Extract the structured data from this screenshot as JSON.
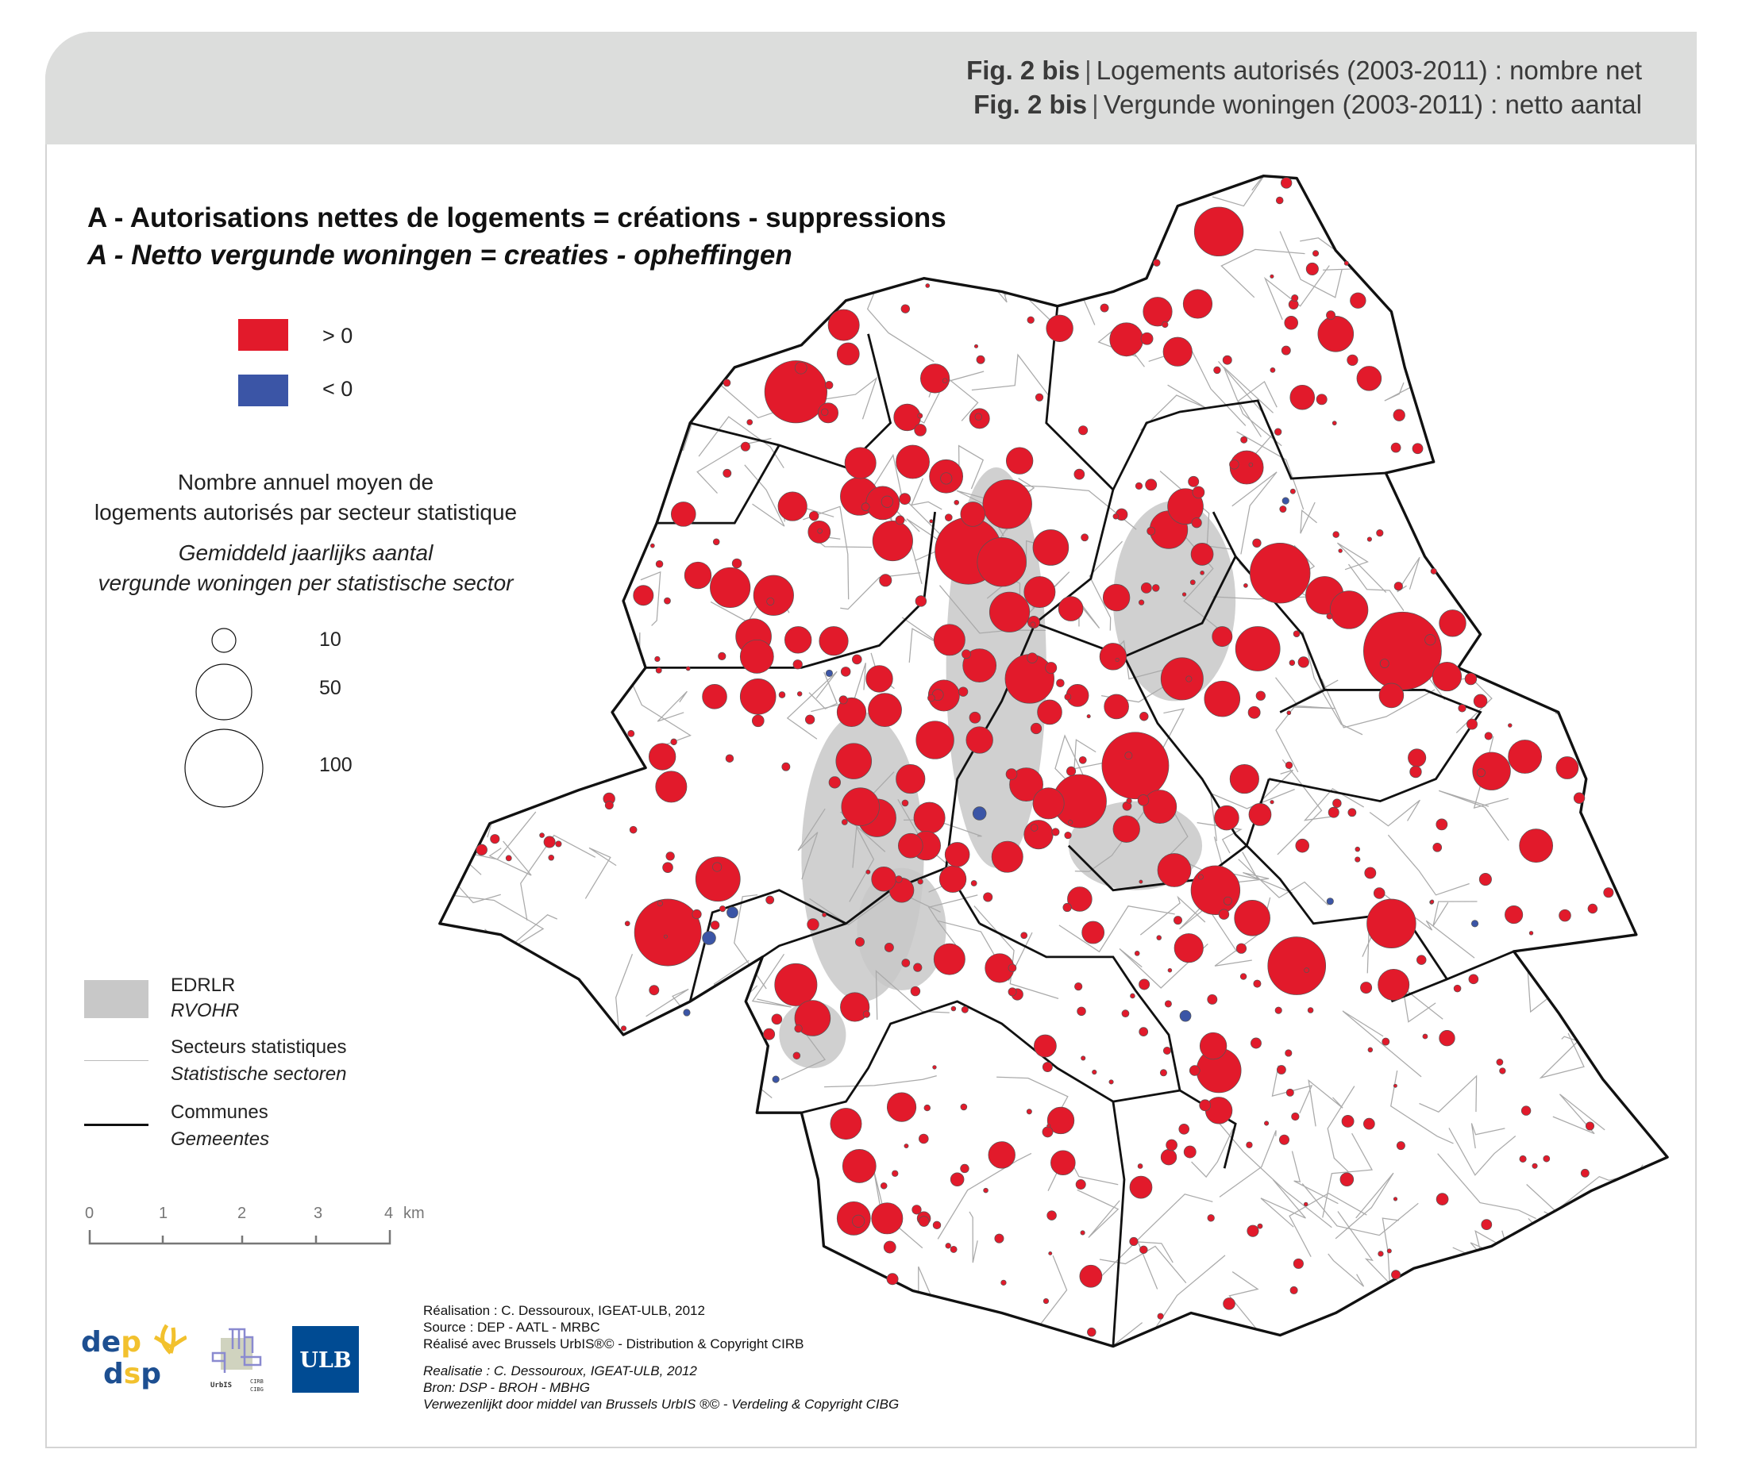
{
  "header": {
    "fig_label": "Fig. 2 bis",
    "title_fr": "Logements autorisés (2003-2011) : nombre net",
    "title_nl": "Vergunde woningen (2003-2011) : netto aantal"
  },
  "map": {
    "heading_fr": "A - Autorisations nettes de logements = créations - suppressions",
    "heading_nl": "A - Netto vergunde woningen = creaties - opheffingen",
    "colors": {
      "positive": "#e21a2b",
      "negative": "#3b55a6",
      "edrlr": "#c8c8c8"
    }
  },
  "legend": {
    "sign": [
      {
        "label": "> 0",
        "color": "#e21a2b"
      },
      {
        "label": "< 0",
        "color": "#3b55a6"
      }
    ],
    "size_title_fr_1": "Nombre annuel moyen de",
    "size_title_fr_2": "logements  autorisés par secteur statistique",
    "size_title_nl_1": "Gemiddeld jaarlijks aantal",
    "size_title_nl_2": "vergunde woningen per statistische sector",
    "sizes": [
      "10",
      "50",
      "100"
    ],
    "layers": [
      {
        "fr": "EDRLR",
        "nl": "RVOHR"
      },
      {
        "fr": "Secteurs statistiques",
        "nl": "Statistische sectoren"
      },
      {
        "fr": "Communes",
        "nl": "Gemeentes"
      }
    ]
  },
  "scale": {
    "ticks": [
      "0",
      "1",
      "2",
      "3",
      "4"
    ],
    "unit": "km"
  },
  "logos": {
    "dep": "dep dsp",
    "urbis": "UrbIS CIRB CIBG",
    "ulb": "ULB"
  },
  "credits": {
    "fr": [
      "Réalisation : C. Dessouroux, IGEAT-ULB, 2012",
      "Source : DEP - AATL - MRBC",
      "Réalisé avec Brussels UrbIS®© - Distribution & Copyright CIRB"
    ],
    "nl": [
      "Realisatie : C. Dessouroux, IGEAT-ULB, 2012",
      "Bron: DSP - BROH - MBHG",
      "Verwezenlijkt door middel van Brussels UrbIS ®© - Verdeling & Copyright CIBG"
    ]
  }
}
